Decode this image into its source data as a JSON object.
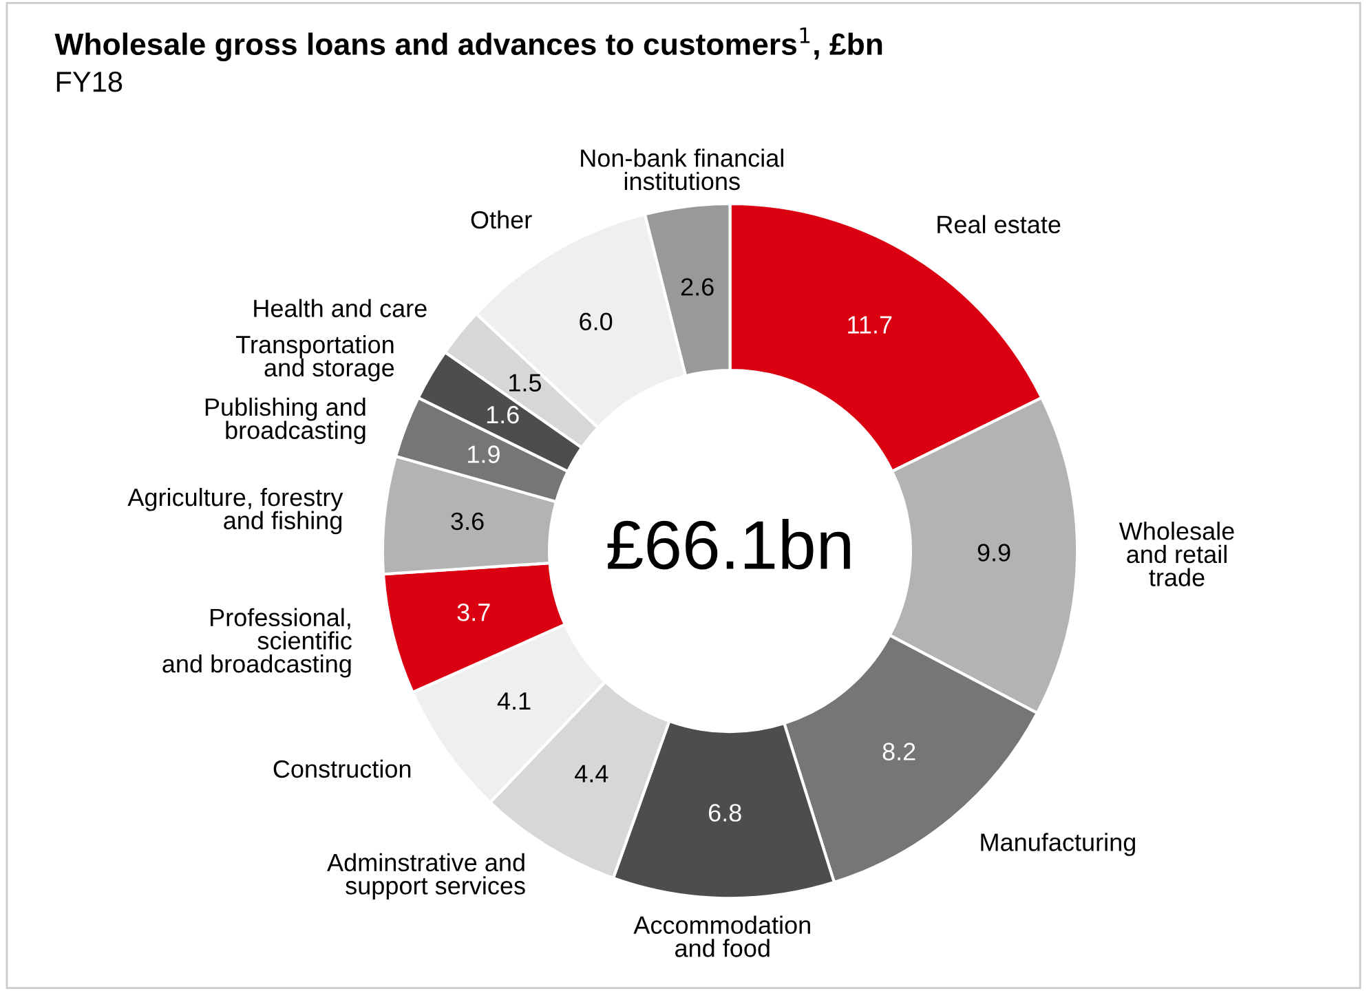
{
  "chart_data": {
    "type": "donut",
    "title": "Wholesale gross loans and advances to customers$^{1}$, £bn",
    "subtitle": "FY18",
    "categories": [
      "Real estate",
      "Wholesale\nand retail\ntrade",
      "Manufacturing",
      "Accommodation\nand food",
      "Adminstrative and\nsupport services",
      "Construction",
      "Professional,\nscientific\nand broadcasting",
      "Agriculture, forestry\nand fishing",
      "Publishing and\nbroadcasting",
      "Transportation\nand storage",
      "Health and care",
      "Other",
      "Non-bank financial\ninstitutions"
    ],
    "values": [
      11.7,
      9.9,
      8.2,
      6.8,
      4.4,
      4.1,
      3.7,
      3.6,
      1.9,
      1.6,
      1.5,
      6.0,
      2.6
    ],
    "colors": [
      "#db0011",
      "#b3b3b3",
      "#767676",
      "#4d4d4d",
      "#d7d7d7",
      "#efefef",
      "#db0011",
      "#b3b3b3",
      "#767676",
      "#4d4d4d",
      "#d7d7d7",
      "#efefef",
      "#999999"
    ],
    "value_labels": [
      "11.7",
      "9.9",
      "8.2",
      "6.8",
      "4.4",
      "4.1",
      "3.7",
      "3.6",
      "1.9",
      "1.6",
      "1.5",
      "6.0",
      "2.6"
    ],
    "annotations": [
      "£66.1bn"
    ]
  }
}
